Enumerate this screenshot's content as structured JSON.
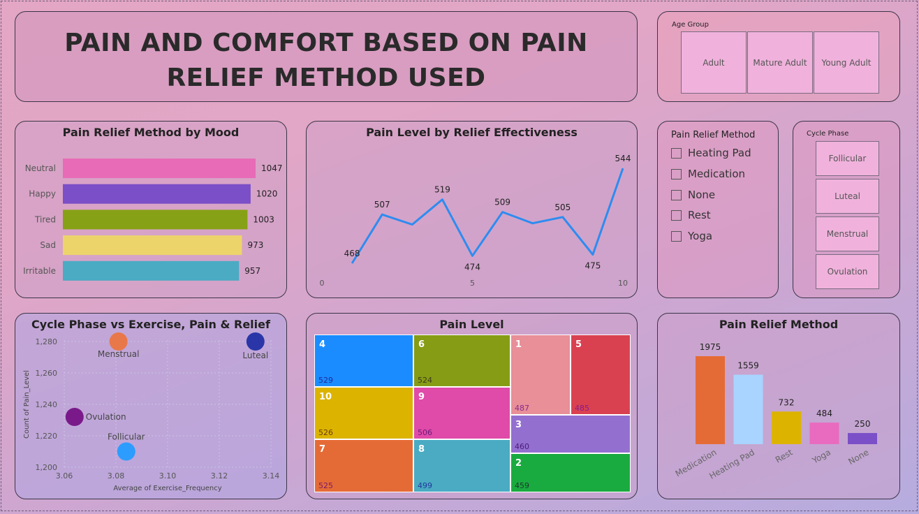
{
  "title": "PAIN AND COMFORT BASED ON PAIN RELIEF METHOD USED",
  "age_group": {
    "label": "Age Group",
    "options": [
      "Adult",
      "Mature Adult",
      "Young Adult"
    ]
  },
  "relief_slicer": {
    "label": "Pain Relief Method",
    "options": [
      "Heating Pad",
      "Medication",
      "None",
      "Rest",
      "Yoga"
    ]
  },
  "phase_slicer": {
    "label": "Cycle Phase",
    "options": [
      "Follicular",
      "Luteal",
      "Menstrual",
      "Ovulation"
    ]
  },
  "chart_data": [
    {
      "type": "bar",
      "orientation": "horizontal",
      "title": "Pain Relief Method by Mood",
      "categories": [
        "Neutral",
        "Happy",
        "Tired",
        "Sad",
        "Irritable"
      ],
      "values": [
        1047,
        1020,
        1003,
        973,
        957
      ],
      "colors": [
        "#e76bb6",
        "#7b4fc7",
        "#87a116",
        "#ecd46a",
        "#4aabc3"
      ],
      "data_labels": true
    },
    {
      "type": "line",
      "title": "Pain Level by Relief Effectiveness",
      "x": [
        1,
        2,
        3,
        4,
        5,
        6,
        7,
        8,
        9,
        10
      ],
      "y": [
        468,
        507,
        499,
        519,
        474,
        509,
        500,
        505,
        475,
        544
      ],
      "labeled_points": [
        1,
        2,
        4,
        5,
        6,
        8,
        9,
        10
      ],
      "x_ticks": [
        0,
        5,
        10
      ],
      "xlim": [
        0,
        10
      ],
      "color": "#2d8cf0"
    },
    {
      "type": "scatter",
      "title": "Cycle Phase vs Exercise, Pain & Relief",
      "xlabel": "Average of Exercise_Frequency",
      "ylabel": "Count of Pain_Level",
      "x_ticks": [
        "3.06",
        "3.08",
        "3.10",
        "3.12",
        "3.14"
      ],
      "y_ticks": [
        "1,200",
        "1,220",
        "1,240",
        "1,260",
        "1,280"
      ],
      "xlim": [
        3.06,
        3.14
      ],
      "ylim": [
        1200,
        1280
      ],
      "points": [
        {
          "name": "Menstrual",
          "x": 3.081,
          "y": 1280,
          "color": "#e8784a"
        },
        {
          "name": "Luteal",
          "x": 3.134,
          "y": 1280,
          "color": "#2a36a8"
        },
        {
          "name": "Ovulation",
          "x": 3.064,
          "y": 1232,
          "color": "#7a1a8a"
        },
        {
          "name": "Follicular",
          "x": 3.084,
          "y": 1210,
          "color": "#2d9cff"
        }
      ]
    },
    {
      "type": "treemap",
      "title": "Pain Level",
      "cells": [
        {
          "label": "4",
          "value": 529,
          "color": "#1a8cff",
          "value_color": "#1f2aa0"
        },
        {
          "label": "6",
          "value": 524,
          "color": "#879c15",
          "value_color": "#3a3a1a"
        },
        {
          "label": "10",
          "value": 526,
          "color": "#dcb400",
          "value_color": "#6a3a10"
        },
        {
          "label": "9",
          "value": 506,
          "color": "#e04aa8",
          "value_color": "#6a1a7a"
        },
        {
          "label": "7",
          "value": 525,
          "color": "#e56b36",
          "value_color": "#7a1a6a"
        },
        {
          "label": "8",
          "value": 499,
          "color": "#4aabc3",
          "value_color": "#1f3a9a"
        },
        {
          "label": "1",
          "value": 487,
          "color": "#e88f98",
          "value_color": "#8a2a8a"
        },
        {
          "label": "5",
          "value": 485,
          "color": "#d94150",
          "value_color": "#8a1a8a"
        },
        {
          "label": "3",
          "value": 460,
          "color": "#9370d0",
          "value_color": "#4a1a7a"
        },
        {
          "label": "2",
          "value": 459,
          "color": "#1aab40",
          "value_color": "#1a3a2a"
        }
      ]
    },
    {
      "type": "bar",
      "orientation": "vertical",
      "title": "Pain Relief Method",
      "categories": [
        "Medication",
        "Heating Pad",
        "Rest",
        "Yoga",
        "None"
      ],
      "values": [
        1975,
        1559,
        732,
        484,
        250
      ],
      "colors": [
        "#e56b36",
        "#a8d4ff",
        "#dcb400",
        "#e86bbf",
        "#7b4fc7"
      ],
      "data_labels": true
    }
  ]
}
